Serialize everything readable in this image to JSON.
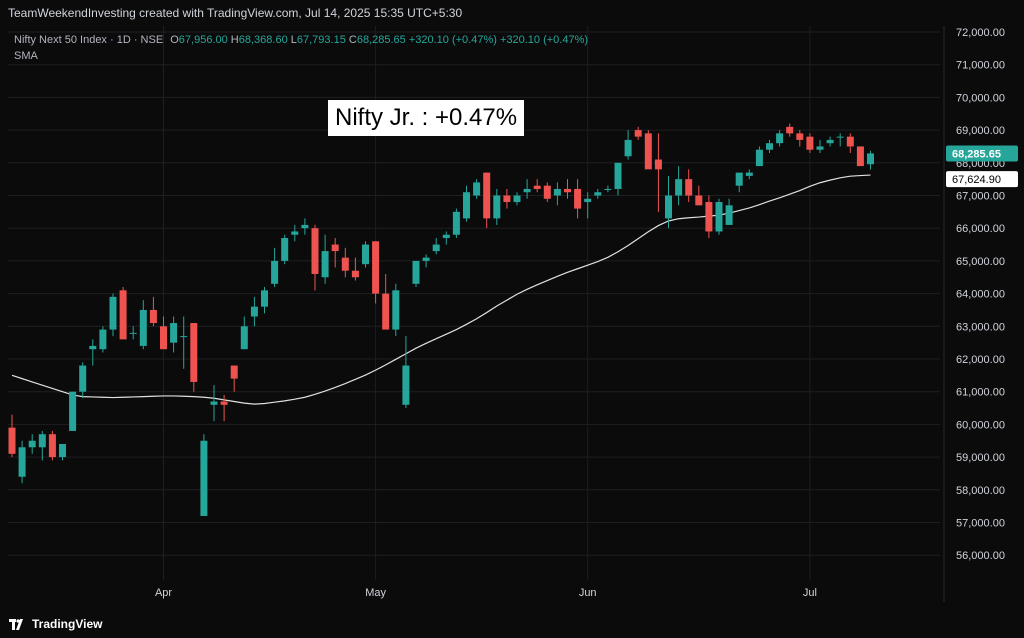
{
  "header": {
    "attribution": "TeamWeekendInvesting created with TradingView.com, Jul 14, 2025 15:35 UTC+5:30"
  },
  "legend": {
    "symbol": "Nifty Next 50 Index · 1D · NSE",
    "open_label": "O",
    "open": "67,956.00",
    "high_label": "H",
    "high": "68,368.60",
    "low_label": "L",
    "low": "67,793.15",
    "close_label": "C",
    "close": "68,285.65",
    "change": "+320.10 (+0.47%)",
    "change2": "+320.10 (+0.47%)",
    "indicator": "SMA"
  },
  "annotation": "Nifty Jr. : +0.47%",
  "footer": {
    "brand": "TradingView"
  },
  "colors": {
    "up": "#26a69a",
    "down": "#ef5350",
    "sma": "#e0e0e0",
    "background": "#0b0b0c",
    "grid": "#1f1f22"
  },
  "chart_data": {
    "type": "candlestick",
    "ylim": [
      55400,
      72400
    ],
    "yticks": [
      56000,
      57000,
      58000,
      59000,
      60000,
      61000,
      62000,
      63000,
      64000,
      65000,
      66000,
      67000,
      68000,
      69000,
      70000,
      71000,
      72000
    ],
    "ytick_labels": [
      "56,000.00",
      "57,000.00",
      "58,000.00",
      "59,000.00",
      "60,000.00",
      "61,000.00",
      "62,000.00",
      "63,000.00",
      "64,000.00",
      "65,000.00",
      "66,000.00",
      "67,000.00",
      "68,000.00",
      "69,000.00",
      "70,000.00",
      "71,000.00",
      "72,000.00"
    ],
    "xticks": [
      {
        "label": "Apr",
        "index": 15
      },
      {
        "label": "May",
        "index": 36
      },
      {
        "label": "Jun",
        "index": 57
      },
      {
        "label": "Jul",
        "index": 79
      }
    ],
    "last_price_label": "68,285.65",
    "sma_label": "67,624.90",
    "candles": [
      [
        59900,
        60300,
        59000,
        59100
      ],
      [
        58400,
        59500,
        58200,
        59300
      ],
      [
        59300,
        59700,
        59100,
        59500
      ],
      [
        59300,
        59800,
        58900,
        59700
      ],
      [
        59700,
        59800,
        58900,
        59000
      ],
      [
        59000,
        59400,
        58900,
        59400
      ],
      [
        59800,
        61000,
        59800,
        61000
      ],
      [
        61000,
        61900,
        60800,
        61800
      ],
      [
        62300,
        62600,
        61800,
        62400
      ],
      [
        62300,
        63000,
        62200,
        62900
      ],
      [
        62900,
        64000,
        62700,
        63900
      ],
      [
        64100,
        64200,
        62700,
        62600
      ],
      [
        62800,
        63000,
        62600,
        62800
      ],
      [
        62400,
        63800,
        62300,
        63500
      ],
      [
        63500,
        63900,
        63000,
        63100
      ],
      [
        63000,
        63300,
        62400,
        62300
      ],
      [
        62500,
        63300,
        62200,
        63100
      ],
      [
        62700,
        63300,
        61700,
        62700
      ],
      [
        63100,
        63100,
        61000,
        61300
      ],
      [
        57200,
        59700,
        57200,
        59500
      ],
      [
        60600,
        61200,
        60100,
        60700
      ],
      [
        60700,
        60900,
        60100,
        60600
      ],
      [
        61800,
        61800,
        61000,
        61400
      ],
      [
        62300,
        63300,
        62300,
        63000
      ],
      [
        63300,
        63900,
        63000,
        63600
      ],
      [
        63600,
        64200,
        63400,
        64100
      ],
      [
        64300,
        65400,
        64200,
        65000
      ],
      [
        65000,
        65800,
        64900,
        65700
      ],
      [
        65800,
        66100,
        65600,
        65900
      ],
      [
        66000,
        66300,
        65800,
        66100
      ],
      [
        66000,
        66100,
        64100,
        64600
      ],
      [
        64500,
        65800,
        64300,
        65300
      ],
      [
        65500,
        65700,
        64800,
        65300
      ],
      [
        65100,
        65400,
        64500,
        64700
      ],
      [
        64700,
        65100,
        64400,
        64500
      ],
      [
        64900,
        65600,
        64800,
        65500
      ],
      [
        65600,
        65600,
        63700,
        64000
      ],
      [
        64000,
        64600,
        62900,
        62900
      ],
      [
        62900,
        64300,
        62700,
        64100
      ],
      [
        60600,
        62700,
        60500,
        61800
      ],
      [
        64300,
        65000,
        64200,
        65000
      ],
      [
        65000,
        65200,
        64800,
        65100
      ],
      [
        65300,
        65700,
        65200,
        65500
      ],
      [
        65700,
        65900,
        65500,
        65800
      ],
      [
        65800,
        66600,
        65700,
        66500
      ],
      [
        66300,
        67300,
        66200,
        67100
      ],
      [
        67000,
        67500,
        66900,
        67400
      ],
      [
        67700,
        67700,
        66000,
        66300
      ],
      [
        66300,
        67200,
        66100,
        67000
      ],
      [
        67000,
        67200,
        66600,
        66800
      ],
      [
        66800,
        67100,
        66700,
        67000
      ],
      [
        67100,
        67500,
        66900,
        67200
      ],
      [
        67300,
        67500,
        67100,
        67200
      ],
      [
        67300,
        67400,
        66800,
        66900
      ],
      [
        67000,
        67400,
        66700,
        67200
      ],
      [
        67200,
        67500,
        66900,
        67100
      ],
      [
        67200,
        67500,
        66300,
        66600
      ],
      [
        66800,
        67100,
        66300,
        66900
      ],
      [
        67000,
        67200,
        66900,
        67100
      ],
      [
        67200,
        67300,
        67100,
        67200
      ],
      [
        67200,
        68000,
        67000,
        68000
      ],
      [
        68200,
        69000,
        68100,
        68700
      ],
      [
        69000,
        69100,
        68700,
        68800
      ],
      [
        68900,
        69000,
        67900,
        67800
      ],
      [
        68100,
        68900,
        66500,
        67800
      ],
      [
        66300,
        67600,
        66000,
        67000
      ],
      [
        67000,
        67900,
        66700,
        67500
      ],
      [
        67500,
        67800,
        66800,
        67000
      ],
      [
        67000,
        67300,
        66700,
        66700
      ],
      [
        66800,
        67000,
        65700,
        65900
      ],
      [
        65900,
        66900,
        65800,
        66800
      ],
      [
        66100,
        66900,
        66100,
        66700
      ],
      [
        67300,
        67600,
        67100,
        67700
      ],
      [
        67600,
        67800,
        67500,
        67700
      ],
      [
        67900,
        68500,
        67900,
        68400
      ],
      [
        68400,
        68700,
        68300,
        68600
      ],
      [
        68600,
        69000,
        68500,
        68900
      ],
      [
        69100,
        69200,
        68800,
        68900
      ],
      [
        68900,
        69000,
        68500,
        68700
      ],
      [
        68800,
        68900,
        68300,
        68400
      ],
      [
        68400,
        68700,
        68300,
        68500
      ],
      [
        68600,
        68800,
        68500,
        68700
      ],
      [
        68800,
        68900,
        68500,
        68800
      ],
      [
        68800,
        68900,
        68300,
        68500
      ],
      [
        68500,
        68500,
        67900,
        67900
      ],
      [
        67956,
        68369,
        67793,
        68286
      ]
    ],
    "sma": [
      61500,
      61400,
      61300,
      61200,
      61100,
      61000,
      60900,
      60850,
      60840,
      60830,
      60820,
      60830,
      60840,
      60850,
      60860,
      60870,
      60870,
      60860,
      60850,
      60830,
      60800,
      60750,
      60700,
      60650,
      60620,
      60640,
      60680,
      60720,
      60770,
      60830,
      60920,
      61020,
      61130,
      61250,
      61380,
      61510,
      61660,
      61820,
      61990,
      62160,
      62330,
      62480,
      62620,
      62760,
      62900,
      63060,
      63230,
      63420,
      63620,
      63800,
      63980,
      64130,
      64270,
      64400,
      64530,
      64650,
      64760,
      64870,
      64980,
      65110,
      65280,
      65470,
      65680,
      65890,
      66080,
      66220,
      66290,
      66320,
      66340,
      66370,
      66400,
      66460,
      66540,
      66620,
      66720,
      66830,
      66930,
      67040,
      67150,
      67280,
      67390,
      67470,
      67540,
      67590,
      67610,
      67625
    ]
  }
}
